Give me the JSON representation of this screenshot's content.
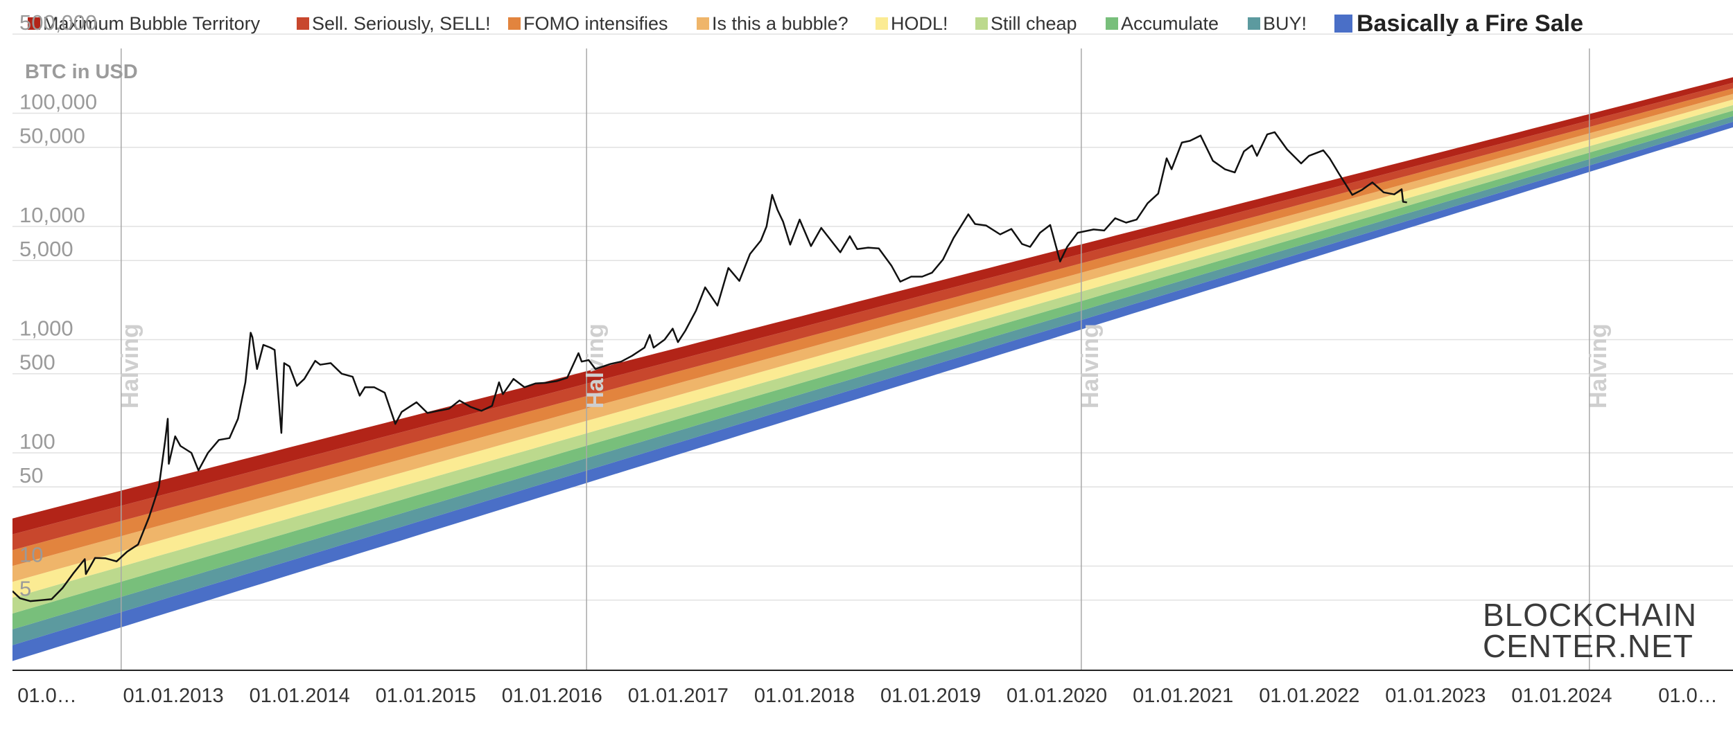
{
  "legend": {
    "items": [
      {
        "label": "Maximum Bubble Territory",
        "color": "#b22418"
      },
      {
        "label": "Sell. Seriously, SELL!",
        "color": "#c8472d"
      },
      {
        "label": "FOMO intensifies",
        "color": "#e2843e"
      },
      {
        "label": "Is this a bubble?",
        "color": "#efb56a"
      },
      {
        "label": "HODL!",
        "color": "#fbeb93"
      },
      {
        "label": "Still cheap",
        "color": "#bcd98d"
      },
      {
        "label": "Accumulate",
        "color": "#78bf7b"
      },
      {
        "label": "BUY!",
        "color": "#5c9a9f"
      },
      {
        "label": "Basically a Fire Sale",
        "color": "#4a6fc7"
      }
    ]
  },
  "watermark": {
    "line1": "BLOCKCHAIN",
    "line2": "CENTER.NET"
  },
  "chart_data": {
    "type": "line",
    "ylabel": "BTC in USD",
    "y_scale": "log",
    "y_ticks": [
      {
        "value": 5,
        "label": "5"
      },
      {
        "value": 10,
        "label": "10"
      },
      {
        "value": 50,
        "label": "50"
      },
      {
        "value": 100,
        "label": "100"
      },
      {
        "value": 500,
        "label": "500"
      },
      {
        "value": 1000,
        "label": "1,000"
      },
      {
        "value": 5000,
        "label": "5,000"
      },
      {
        "value": 10000,
        "label": "10,000"
      },
      {
        "value": 50000,
        "label": "50,000"
      },
      {
        "value": 100000,
        "label": "100,000"
      },
      {
        "value": 500000,
        "label": "500,000"
      }
    ],
    "x_ticks": [
      "01.0…",
      "01.01.2013",
      "01.01.2014",
      "01.01.2015",
      "01.01.2016",
      "01.01.2017",
      "01.01.2018",
      "01.01.2019",
      "01.01.2020",
      "01.01.2021",
      "01.01.2022",
      "01.01.2023",
      "01.01.2024",
      "01.0…"
    ],
    "x_range": [
      "2012-01-25",
      "2025-06-01"
    ],
    "y_range": [
      1.2,
      1000000
    ],
    "halvings": [
      {
        "date": "2012-11-28",
        "label": "Halving"
      },
      {
        "date": "2016-07-09",
        "label": "Halving"
      },
      {
        "date": "2020-05-11",
        "label": "Halving"
      },
      {
        "date": "2024-04-20",
        "label": "Halving"
      }
    ],
    "rainbow_bands": {
      "bottom_start": 1.45,
      "bottom_end": 75000,
      "band_ratio_start": 1.38,
      "band_ratio_end": 1.12
    },
    "series": [
      {
        "name": "BTC price",
        "color": "#111111",
        "points": [
          [
            "2012-01-25",
            6
          ],
          [
            "2012-02-15",
            5.2
          ],
          [
            "2012-03-15",
            4.9
          ],
          [
            "2012-04-15",
            5
          ],
          [
            "2012-05-15",
            5.1
          ],
          [
            "2012-06-15",
            6.4
          ],
          [
            "2012-07-15",
            8.6
          ],
          [
            "2012-08-17",
            11.5
          ],
          [
            "2012-08-20",
            8.5
          ],
          [
            "2012-09-15",
            11.8
          ],
          [
            "2012-10-15",
            11.7
          ],
          [
            "2012-11-15",
            11
          ],
          [
            "2012-12-15",
            13.4
          ],
          [
            "2013-01-15",
            15.5
          ],
          [
            "2013-02-15",
            27
          ],
          [
            "2013-03-15",
            50
          ],
          [
            "2013-04-02",
            130
          ],
          [
            "2013-04-09",
            200
          ],
          [
            "2013-04-12",
            80
          ],
          [
            "2013-04-30",
            140
          ],
          [
            "2013-05-15",
            115
          ],
          [
            "2013-06-15",
            100
          ],
          [
            "2013-07-05",
            70
          ],
          [
            "2013-08-01",
            100
          ],
          [
            "2013-09-01",
            130
          ],
          [
            "2013-10-01",
            135
          ],
          [
            "2013-10-25",
            200
          ],
          [
            "2013-11-15",
            420
          ],
          [
            "2013-11-30",
            1150
          ],
          [
            "2013-12-05",
            1050
          ],
          [
            "2013-12-18",
            550
          ],
          [
            "2014-01-05",
            900
          ],
          [
            "2014-01-25",
            850
          ],
          [
            "2014-02-06",
            810
          ],
          [
            "2014-02-25",
            150
          ],
          [
            "2014-03-05",
            620
          ],
          [
            "2014-03-20",
            580
          ],
          [
            "2014-04-10",
            390
          ],
          [
            "2014-05-01",
            450
          ],
          [
            "2014-06-01",
            650
          ],
          [
            "2014-06-15",
            600
          ],
          [
            "2014-07-15",
            620
          ],
          [
            "2014-08-15",
            500
          ],
          [
            "2014-09-15",
            470
          ],
          [
            "2014-10-05",
            320
          ],
          [
            "2014-10-20",
            380
          ],
          [
            "2014-11-15",
            380
          ],
          [
            "2014-12-15",
            340
          ],
          [
            "2015-01-14",
            180
          ],
          [
            "2015-02-01",
            230
          ],
          [
            "2015-03-15",
            280
          ],
          [
            "2015-04-15",
            225
          ],
          [
            "2015-05-15",
            235
          ],
          [
            "2015-06-15",
            245
          ],
          [
            "2015-07-15",
            290
          ],
          [
            "2015-08-15",
            255
          ],
          [
            "2015-09-15",
            235
          ],
          [
            "2015-10-15",
            260
          ],
          [
            "2015-11-04",
            420
          ],
          [
            "2015-11-15",
            330
          ],
          [
            "2015-12-15",
            450
          ],
          [
            "2016-01-15",
            380
          ],
          [
            "2016-02-15",
            410
          ],
          [
            "2016-03-15",
            415
          ],
          [
            "2016-04-15",
            430
          ],
          [
            "2016-05-15",
            460
          ],
          [
            "2016-06-16",
            760
          ],
          [
            "2016-06-25",
            640
          ],
          [
            "2016-07-15",
            660
          ],
          [
            "2016-08-03",
            550
          ],
          [
            "2016-09-15",
            610
          ],
          [
            "2016-10-15",
            640
          ],
          [
            "2016-11-15",
            720
          ],
          [
            "2016-12-20",
            850
          ],
          [
            "2017-01-04",
            1100
          ],
          [
            "2017-01-15",
            850
          ],
          [
            "2017-02-15",
            1000
          ],
          [
            "2017-03-10",
            1250
          ],
          [
            "2017-03-25",
            950
          ],
          [
            "2017-04-15",
            1200
          ],
          [
            "2017-05-15",
            1800
          ],
          [
            "2017-06-10",
            2900
          ],
          [
            "2017-07-15",
            2000
          ],
          [
            "2017-08-15",
            4300
          ],
          [
            "2017-09-15",
            3300
          ],
          [
            "2017-10-15",
            5700
          ],
          [
            "2017-11-15",
            7500
          ],
          [
            "2017-12-01",
            10000
          ],
          [
            "2017-12-17",
            19000
          ],
          [
            "2018-01-01",
            14000
          ],
          [
            "2018-01-17",
            11000
          ],
          [
            "2018-02-06",
            6900
          ],
          [
            "2018-03-05",
            11500
          ],
          [
            "2018-04-06",
            6700
          ],
          [
            "2018-05-05",
            9700
          ],
          [
            "2018-06-28",
            5900
          ],
          [
            "2018-07-25",
            8200
          ],
          [
            "2018-08-15",
            6300
          ],
          [
            "2018-09-15",
            6500
          ],
          [
            "2018-10-15",
            6400
          ],
          [
            "2018-11-20",
            4500
          ],
          [
            "2018-12-15",
            3250
          ],
          [
            "2019-01-15",
            3600
          ],
          [
            "2019-02-15",
            3600
          ],
          [
            "2019-03-15",
            3900
          ],
          [
            "2019-04-15",
            5100
          ],
          [
            "2019-05-15",
            7900
          ],
          [
            "2019-06-26",
            12800
          ],
          [
            "2019-07-15",
            10500
          ],
          [
            "2019-08-15",
            10200
          ],
          [
            "2019-09-24",
            8500
          ],
          [
            "2019-10-26",
            9500
          ],
          [
            "2019-11-25",
            7000
          ],
          [
            "2019-12-18",
            6600
          ],
          [
            "2020-01-15",
            8800
          ],
          [
            "2020-02-13",
            10300
          ],
          [
            "2020-03-12",
            4900
          ],
          [
            "2020-04-01",
            6600
          ],
          [
            "2020-05-01",
            8800
          ],
          [
            "2020-06-15",
            9400
          ],
          [
            "2020-07-15",
            9200
          ],
          [
            "2020-08-15",
            11800
          ],
          [
            "2020-09-15",
            10800
          ],
          [
            "2020-10-15",
            11500
          ],
          [
            "2020-11-15",
            16000
          ],
          [
            "2020-12-15",
            19500
          ],
          [
            "2021-01-08",
            40000
          ],
          [
            "2021-01-22",
            32000
          ],
          [
            "2021-02-20",
            55000
          ],
          [
            "2021-03-15",
            57000
          ],
          [
            "2021-04-14",
            63500
          ],
          [
            "2021-05-19",
            38000
          ],
          [
            "2021-06-22",
            32000
          ],
          [
            "2021-07-20",
            30000
          ],
          [
            "2021-08-15",
            46000
          ],
          [
            "2021-09-07",
            52000
          ],
          [
            "2021-09-21",
            42000
          ],
          [
            "2021-10-20",
            65000
          ],
          [
            "2021-11-10",
            68000
          ],
          [
            "2021-12-15",
            48000
          ],
          [
            "2022-01-24",
            36000
          ],
          [
            "2022-02-15",
            42000
          ],
          [
            "2022-03-28",
            47000
          ],
          [
            "2022-04-15",
            40000
          ],
          [
            "2022-05-12",
            29000
          ],
          [
            "2022-06-18",
            19000
          ],
          [
            "2022-07-15",
            21000
          ],
          [
            "2022-08-14",
            24500
          ],
          [
            "2022-09-15",
            20000
          ],
          [
            "2022-10-15",
            19200
          ],
          [
            "2022-11-05",
            21300
          ],
          [
            "2022-11-09",
            16500
          ],
          [
            "2022-11-20",
            16300
          ]
        ]
      }
    ]
  }
}
